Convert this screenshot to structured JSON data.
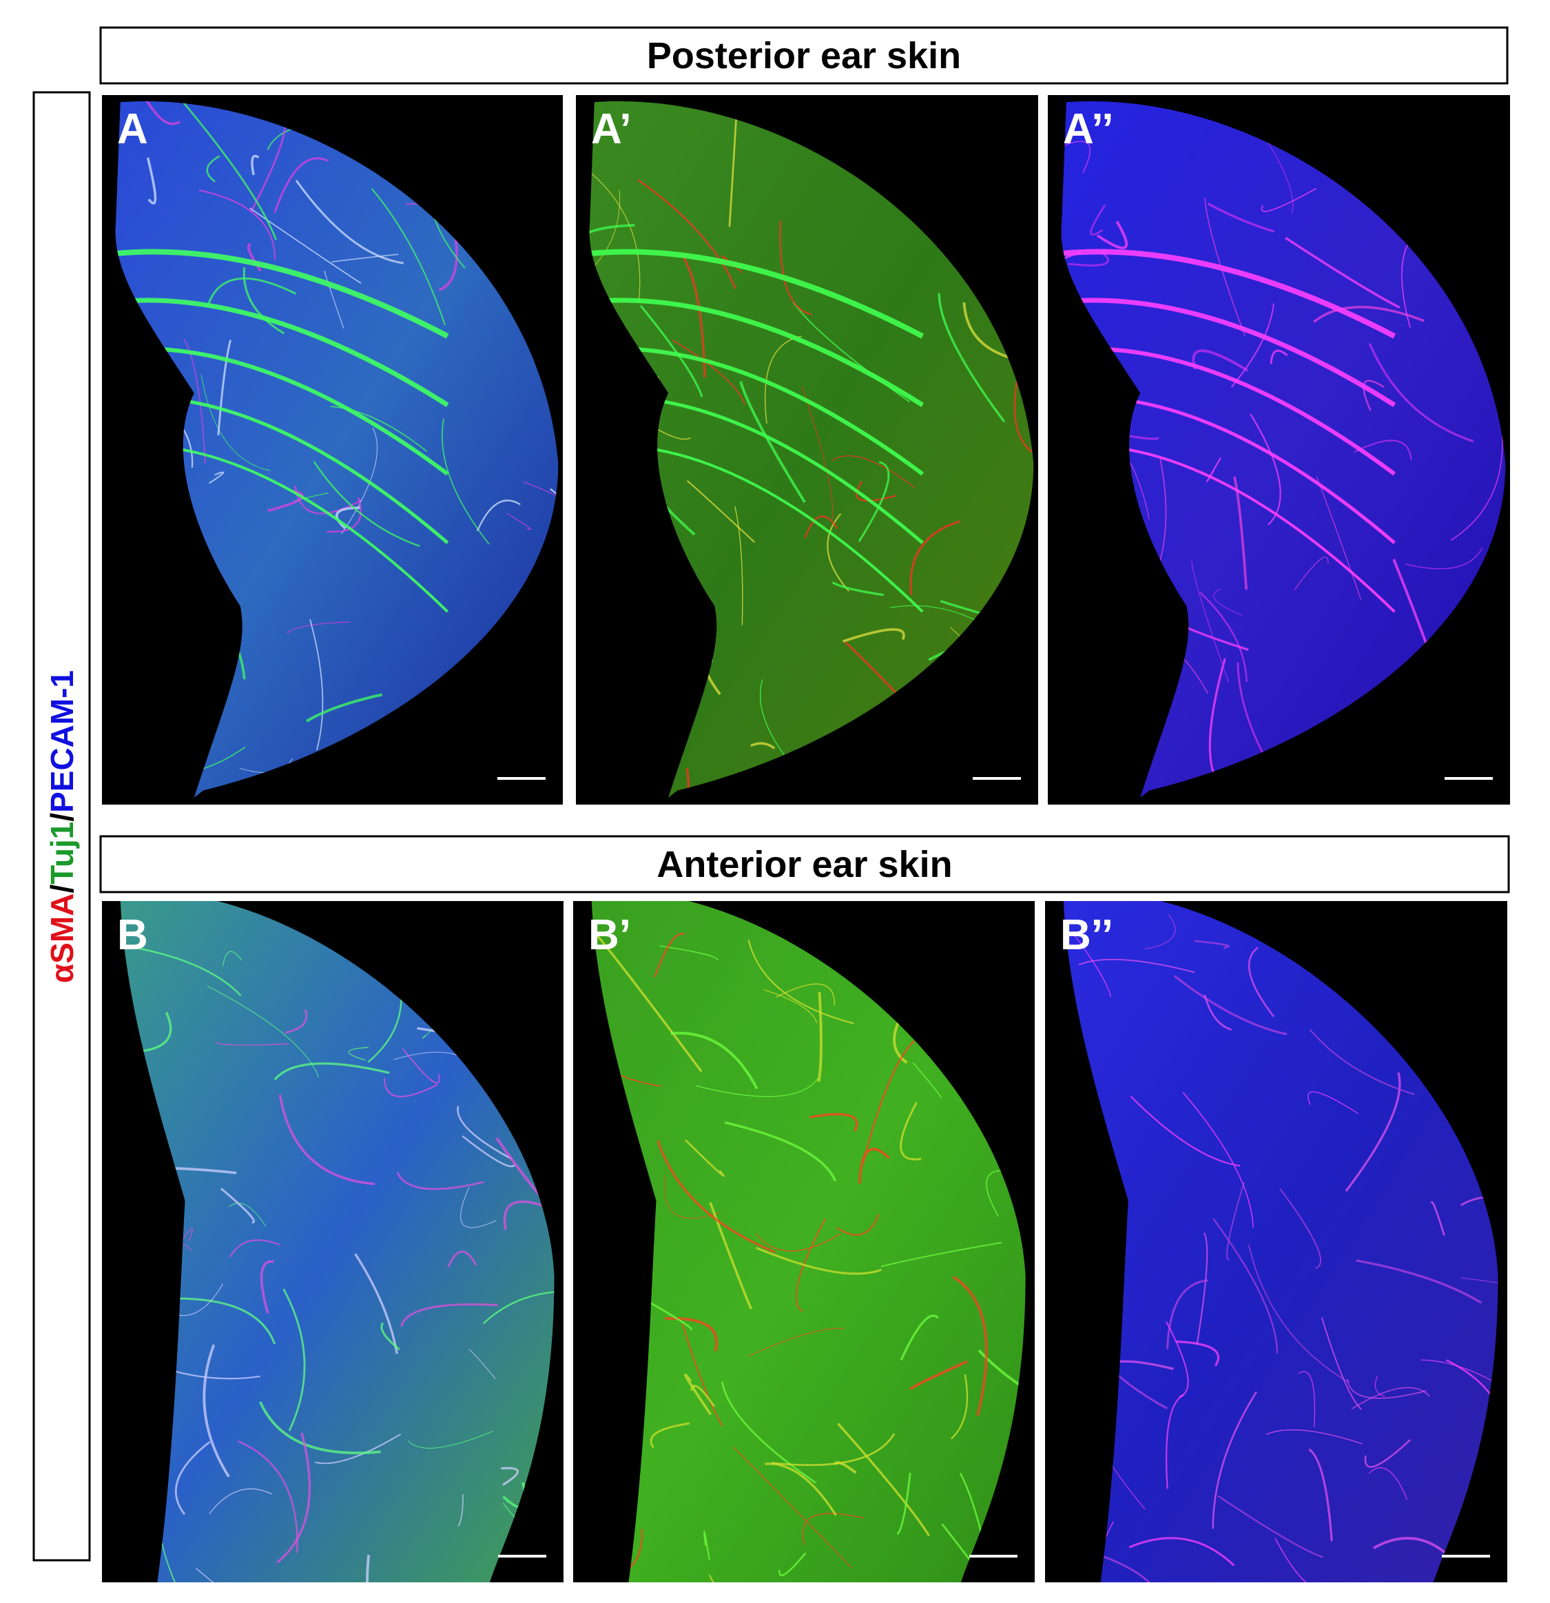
{
  "header_top": {
    "title": "Posterior ear skin"
  },
  "header_bottom": {
    "title": "Anterior ear skin"
  },
  "side_label": {
    "parts": [
      "αSMA",
      "/",
      "Tuj1",
      "/",
      "PECAM-1"
    ]
  },
  "panels": [
    {
      "label": "A"
    },
    {
      "label": "A’"
    },
    {
      "label": "A’’"
    },
    {
      "label": "B"
    },
    {
      "label": "B’"
    },
    {
      "label": "B’’"
    }
  ]
}
